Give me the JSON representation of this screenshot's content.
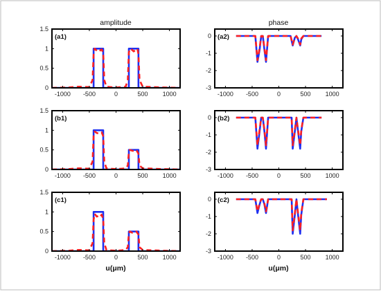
{
  "figure": {
    "col_titles": [
      "amplitude",
      "phase"
    ],
    "x_label": "u(μm)",
    "colors": {
      "solid": "#1f2ff0",
      "dashed": "#ff2020",
      "frame": "#000000",
      "background": "#ffffff"
    }
  },
  "chart_data": [
    {
      "type": "line",
      "panel_label": "(a1)",
      "xlim": [
        -1200,
        1200
      ],
      "ylim": [
        0,
        1.5
      ],
      "xticks": [
        -1000,
        -500,
        0,
        500,
        1000
      ],
      "yticks": [
        0,
        0.5,
        1,
        1.5
      ],
      "series": [
        {
          "style": "solid",
          "x": [
            -1200,
            -420,
            -420,
            -240,
            -240,
            240,
            240,
            420,
            420,
            1200
          ],
          "y": [
            0,
            0,
            1,
            1,
            0,
            0,
            1,
            1,
            0,
            0
          ]
        },
        {
          "style": "dashed",
          "x": [
            -1200,
            -900,
            -700,
            -500,
            -440,
            -420,
            -400,
            -360,
            -330,
            -300,
            -270,
            -240,
            -220,
            -180,
            -100,
            0,
            100,
            180,
            220,
            240,
            260,
            300,
            330,
            360,
            400,
            420,
            440,
            500,
            700,
            900,
            1200
          ],
          "y": [
            0,
            0.01,
            0.03,
            0.02,
            0.2,
            0.85,
            1.0,
            0.95,
            0.92,
            0.95,
            0.98,
            0.9,
            0.2,
            0.03,
            0.02,
            0.01,
            0.02,
            0.03,
            0.2,
            0.9,
            1.0,
            0.97,
            0.93,
            0.96,
            1.0,
            0.85,
            0.2,
            0.03,
            0.02,
            0.01,
            0
          ]
        }
      ]
    },
    {
      "type": "line",
      "panel_label": "(a2)",
      "xlim": [
        -1200,
        1200
      ],
      "ylim": [
        -3,
        0.4
      ],
      "xticks": [
        -1000,
        -500,
        0,
        500,
        1000
      ],
      "yticks": [
        -3,
        -2,
        -1,
        0
      ],
      "series": [
        {
          "style": "solid",
          "x": [
            -800,
            -440,
            -400,
            -360,
            -330,
            -300,
            -270,
            -240,
            -200,
            180,
            220,
            260,
            300,
            330,
            360,
            400,
            420,
            460,
            800
          ],
          "y": [
            0,
            0,
            -1.5,
            -0.8,
            0,
            0,
            -0.8,
            -1.5,
            0,
            0,
            0,
            -0.55,
            -0.1,
            0,
            -0.2,
            -0.55,
            -0.2,
            0,
            0
          ]
        },
        {
          "style": "dashed",
          "x": [
            -800,
            -440,
            -400,
            -360,
            -330,
            -300,
            -270,
            -240,
            -200,
            180,
            220,
            260,
            300,
            330,
            360,
            400,
            420,
            460,
            800
          ],
          "y": [
            0,
            0,
            -1.4,
            -0.7,
            0,
            0,
            -0.7,
            -1.4,
            0,
            0,
            0,
            -0.5,
            -0.1,
            0,
            -0.15,
            -0.5,
            -0.15,
            0,
            0
          ]
        }
      ]
    },
    {
      "type": "line",
      "panel_label": "(b1)",
      "xlim": [
        -1200,
        1200
      ],
      "ylim": [
        0,
        1.5
      ],
      "xticks": [
        -1000,
        -500,
        0,
        500,
        1000
      ],
      "yticks": [
        0,
        0.5,
        1,
        1.5
      ],
      "series": [
        {
          "style": "solid",
          "x": [
            -1200,
            -420,
            -420,
            -240,
            -240,
            240,
            240,
            420,
            420,
            1200
          ],
          "y": [
            0,
            0,
            1,
            1,
            0,
            0,
            0.5,
            0.5,
            0,
            0
          ]
        },
        {
          "style": "dashed",
          "x": [
            -1200,
            -900,
            -700,
            -500,
            -440,
            -420,
            -400,
            -360,
            -330,
            -300,
            -270,
            -240,
            -220,
            -180,
            -100,
            0,
            100,
            180,
            220,
            240,
            260,
            300,
            340,
            380,
            420,
            440,
            500,
            700,
            900,
            1200
          ],
          "y": [
            0,
            0.01,
            0.03,
            0.02,
            0.2,
            0.85,
            0.97,
            0.93,
            0.92,
            0.93,
            0.95,
            0.85,
            0.2,
            0.03,
            0.02,
            0.01,
            0.02,
            0.03,
            0.1,
            0.45,
            0.5,
            0.48,
            0.47,
            0.5,
            0.4,
            0.1,
            0.03,
            0.02,
            0.01,
            0
          ]
        }
      ]
    },
    {
      "type": "line",
      "panel_label": "(b2)",
      "xlim": [
        -1200,
        1200
      ],
      "ylim": [
        -3,
        0.4
      ],
      "xticks": [
        -1000,
        -500,
        0,
        500,
        1000
      ],
      "yticks": [
        -3,
        -2,
        -1,
        0
      ],
      "series": [
        {
          "style": "solid",
          "x": [
            -800,
            -440,
            -400,
            -360,
            -330,
            -300,
            -270,
            -240,
            -200,
            200,
            240,
            260,
            300,
            330,
            360,
            400,
            420,
            460,
            800
          ],
          "y": [
            0,
            0,
            -1.8,
            -0.8,
            0,
            0,
            -0.8,
            -1.8,
            0,
            0,
            0,
            -1.8,
            -0.8,
            0,
            -0.8,
            -1.8,
            -0.8,
            0,
            0
          ]
        },
        {
          "style": "dashed",
          "x": [
            -800,
            -440,
            -400,
            -360,
            -330,
            -300,
            -270,
            -240,
            -200,
            200,
            240,
            260,
            300,
            330,
            360,
            400,
            420,
            460,
            800
          ],
          "y": [
            0,
            0,
            -1.6,
            -0.7,
            0,
            0,
            -0.7,
            -1.6,
            0,
            0,
            0,
            -1.6,
            -0.7,
            0,
            -0.7,
            -1.6,
            -0.7,
            0,
            0
          ]
        }
      ]
    },
    {
      "type": "line",
      "panel_label": "(c1)",
      "xlim": [
        -1200,
        1200
      ],
      "ylim": [
        0,
        1.5
      ],
      "xticks": [
        -1000,
        -500,
        0,
        500,
        1000
      ],
      "yticks": [
        0,
        0.5,
        1,
        1.5
      ],
      "series": [
        {
          "style": "solid",
          "x": [
            -1200,
            -420,
            -420,
            -240,
            -240,
            240,
            240,
            420,
            420,
            1200
          ],
          "y": [
            0,
            0,
            1,
            1,
            0,
            0,
            0.5,
            0.5,
            0,
            0
          ]
        },
        {
          "style": "dashed",
          "x": [
            -1200,
            -900,
            -700,
            -500,
            -440,
            -420,
            -400,
            -360,
            -330,
            -300,
            -270,
            -240,
            -220,
            -180,
            -100,
            0,
            100,
            180,
            220,
            240,
            260,
            300,
            340,
            380,
            420,
            440,
            500,
            700,
            900,
            1200
          ],
          "y": [
            0,
            0.01,
            0.03,
            0.02,
            0.2,
            0.8,
            0.95,
            0.88,
            0.9,
            0.87,
            0.93,
            0.82,
            0.2,
            0.03,
            0.02,
            0.01,
            0.02,
            0.03,
            0.1,
            0.45,
            0.5,
            0.47,
            0.46,
            0.5,
            0.42,
            0.1,
            0.03,
            0.02,
            0.01,
            0
          ]
        }
      ]
    },
    {
      "type": "line",
      "panel_label": "(c2)",
      "xlim": [
        -1200,
        1200
      ],
      "ylim": [
        -3,
        0.4
      ],
      "xticks": [
        -1000,
        -500,
        0,
        500,
        1000
      ],
      "yticks": [
        -3,
        -2,
        -1,
        0
      ],
      "series": [
        {
          "style": "solid",
          "x": [
            -800,
            -440,
            -400,
            -360,
            -330,
            -300,
            -270,
            -240,
            -200,
            200,
            240,
            260,
            300,
            330,
            360,
            400,
            420,
            460,
            900
          ],
          "y": [
            0,
            0,
            -0.8,
            -0.3,
            0,
            0,
            -0.3,
            -0.8,
            0,
            0,
            0,
            -2.0,
            -0.9,
            0,
            -0.9,
            -2.0,
            -0.9,
            0,
            0
          ]
        },
        {
          "style": "dashed",
          "x": [
            -800,
            -440,
            -400,
            -360,
            -330,
            -300,
            -270,
            -240,
            -200,
            200,
            240,
            260,
            300,
            330,
            360,
            400,
            420,
            460,
            900
          ],
          "y": [
            0,
            0,
            -0.7,
            -0.25,
            0,
            0,
            -0.25,
            -0.7,
            0,
            0,
            0,
            -1.8,
            -0.8,
            0,
            -0.8,
            -1.8,
            -0.8,
            0,
            0
          ]
        }
      ]
    }
  ]
}
